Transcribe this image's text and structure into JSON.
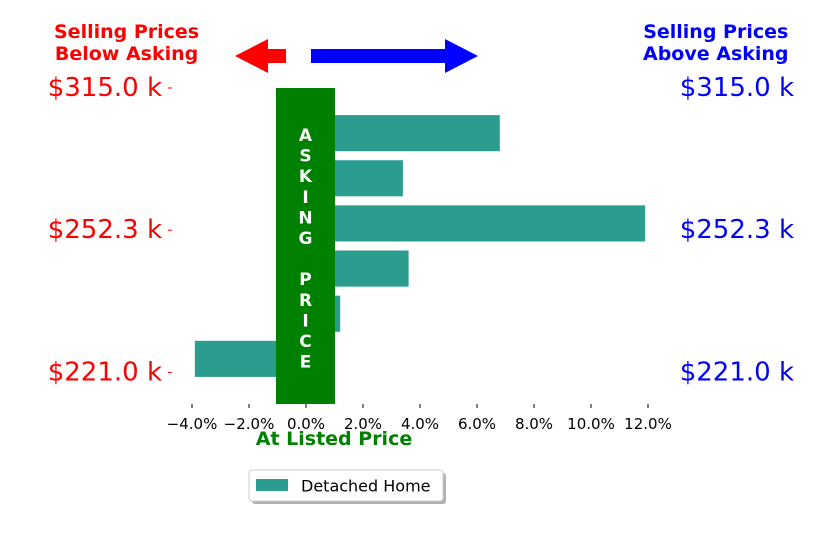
{
  "header_left": {
    "line1": "Selling Prices",
    "line2": "Below Asking",
    "color": "#ff0000"
  },
  "header_right": {
    "line1": "Selling Prices",
    "line2": "Above Asking",
    "color": "#0000ff"
  },
  "arrow_left_color": "#ff0000",
  "arrow_right_color": "#0000ff",
  "asking_band": {
    "letters": [
      "A",
      "S",
      "K",
      "I",
      "N",
      "G",
      "",
      "P",
      "R",
      "I",
      "C",
      "E"
    ],
    "color": "#008000",
    "text_color": "#ffffff"
  },
  "colors": {
    "bar": "#2a9d8f",
    "left_axis_labels": "#ff0000",
    "right_axis_labels": "#0000ff",
    "xlabel": "#008000"
  },
  "chart_data": {
    "type": "bar",
    "orientation": "horizontal",
    "xlabel": "At Listed Price",
    "xlim": [
      -4.0,
      12.0
    ],
    "x_ticks": [
      -4.0,
      -2.0,
      0.0,
      2.0,
      4.0,
      6.0,
      8.0,
      10.0,
      12.0
    ],
    "x_tick_labels": [
      "−4.0%",
      "−2.0%",
      "0.0%",
      "2.0%",
      "4.0%",
      "6.0%",
      "8.0%",
      "10.0%",
      "12.0%"
    ],
    "y_tick_labels": [
      "$315.0 k",
      "$252.3 k",
      "$221.0 k"
    ],
    "series": [
      {
        "name": "Detached Home",
        "values": [
          6.8,
          3.4,
          11.9,
          3.6,
          1.2,
          -3.9
        ]
      }
    ],
    "legend": {
      "position": "bottom-center"
    },
    "grid": false
  }
}
